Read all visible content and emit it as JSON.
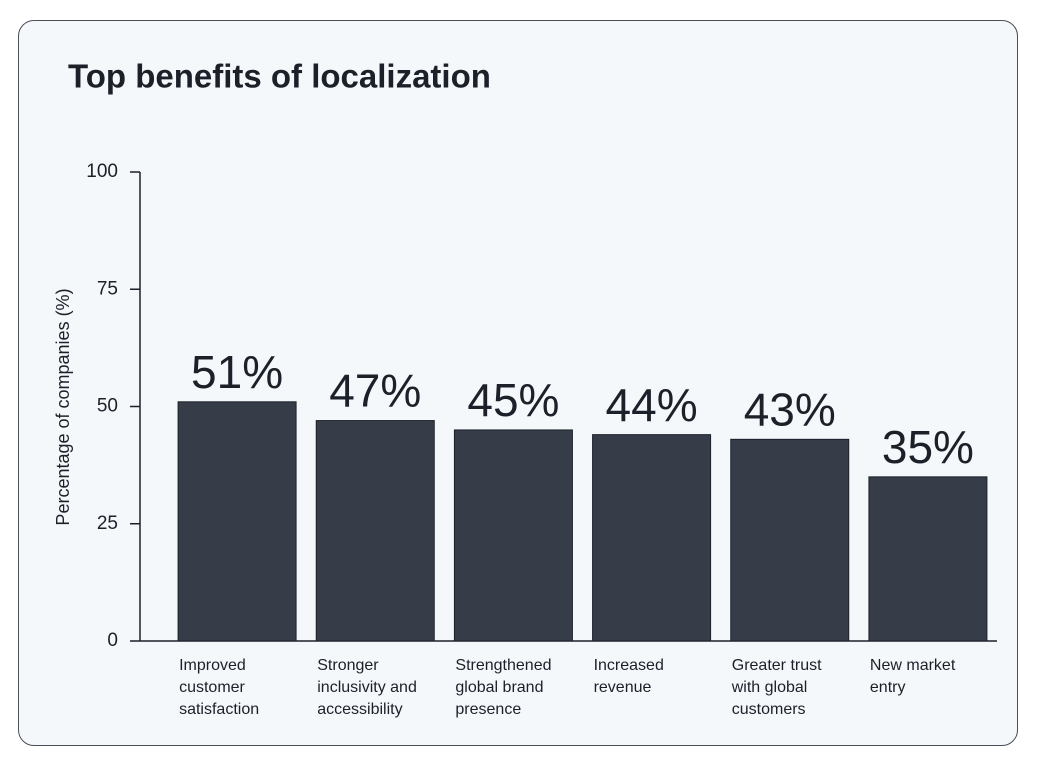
{
  "chart_data": {
    "type": "bar",
    "title": "Top benefits of localization",
    "y_label": "Percentage of companies (%)",
    "categories": [
      "Improved customer satisfaction",
      "Stronger inclusivity and accessibility",
      "Strengthened global brand presence",
      "Increased revenue",
      "Greater trust with global customers",
      "New market entry"
    ],
    "values": [
      51,
      47,
      45,
      44,
      43,
      35
    ],
    "value_labels": [
      "51%",
      "47%",
      "45%",
      "44%",
      "43%",
      "35%"
    ],
    "color": "#363d48",
    "ylim": [
      0,
      100
    ],
    "yticks": [
      0,
      25,
      50,
      75,
      100
    ],
    "grid": false
  }
}
